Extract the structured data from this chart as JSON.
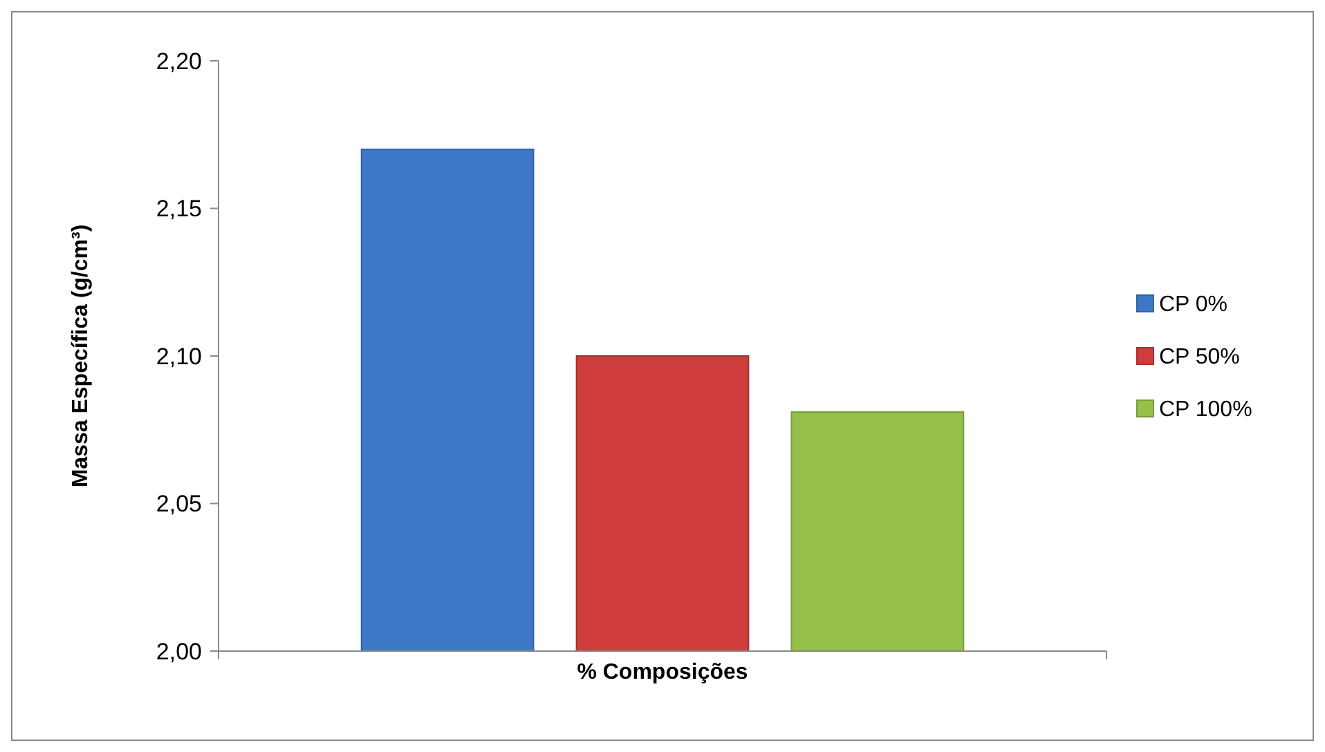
{
  "chart_data": {
    "type": "bar",
    "xlabel": "% Composições",
    "ylabel": "Massa Específica (g/cm³)",
    "categories": [
      null
    ],
    "series": [
      {
        "name": "CP 0%",
        "color": "#3d78c6",
        "values": [
          2.17
        ]
      },
      {
        "name": "CP 50%",
        "color": "#cf3c3c",
        "values": [
          2.1
        ]
      },
      {
        "name": "CP 100%",
        "color": "#95c04a",
        "values": [
          2.081
        ]
      }
    ],
    "ylim": [
      2.0,
      2.2
    ],
    "yticks": [
      {
        "value": 2.0,
        "label": "2,00"
      },
      {
        "value": 2.05,
        "label": "2,05"
      },
      {
        "value": 2.1,
        "label": "2,10"
      },
      {
        "value": 2.15,
        "label": "2,15"
      },
      {
        "value": 2.2,
        "label": "2,20"
      }
    ],
    "legend": "right"
  }
}
